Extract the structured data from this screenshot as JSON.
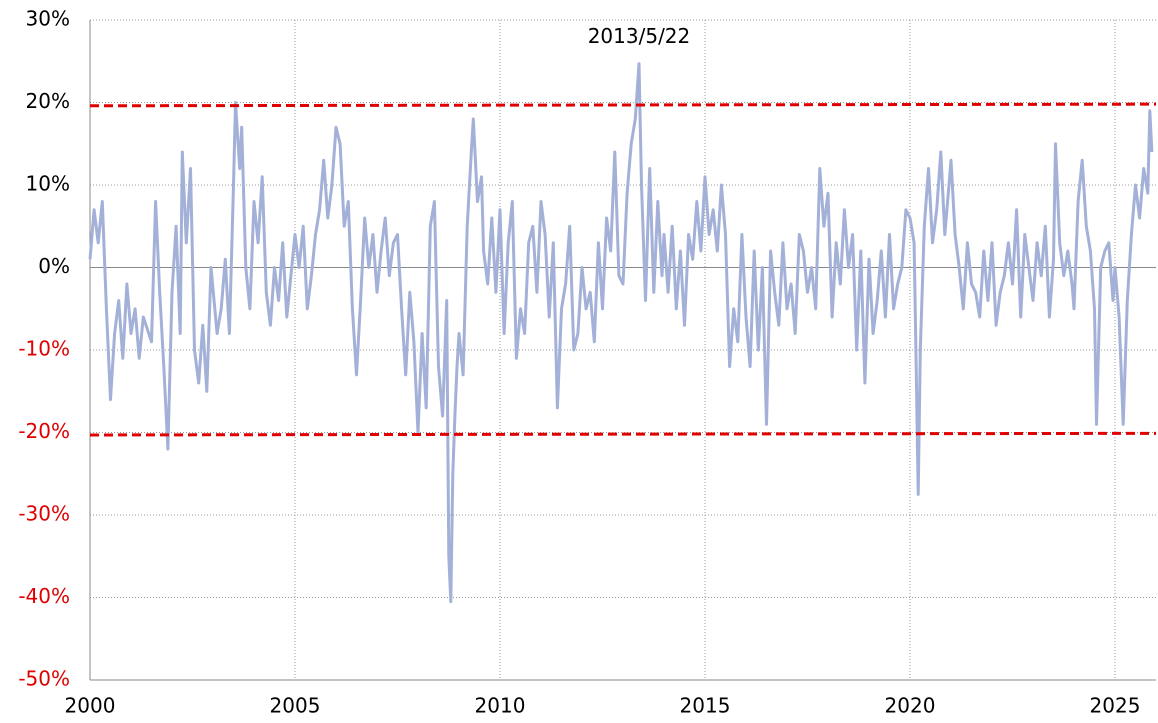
{
  "chart_data": {
    "type": "line",
    "annotation": "2013/5/22",
    "x": [
      2000.0,
      2000.1,
      2000.2,
      2000.3,
      2000.4,
      2000.5,
      2000.6,
      2000.7,
      2000.8,
      2000.9,
      2001.0,
      2001.1,
      2001.2,
      2001.3,
      2001.5,
      2001.6,
      2001.7,
      2001.8,
      2001.9,
      2002.0,
      2002.1,
      2002.2,
      2002.25,
      2002.35,
      2002.45,
      2002.55,
      2002.65,
      2002.75,
      2002.85,
      2002.95,
      2003.1,
      2003.2,
      2003.3,
      2003.4,
      2003.5,
      2003.55,
      2003.65,
      2003.7,
      2003.8,
      2003.9,
      2004.0,
      2004.1,
      2004.2,
      2004.3,
      2004.4,
      2004.5,
      2004.6,
      2004.7,
      2004.8,
      2004.9,
      2005.0,
      2005.1,
      2005.2,
      2005.3,
      2005.4,
      2005.5,
      2005.6,
      2005.7,
      2005.8,
      2005.9,
      2006.0,
      2006.1,
      2006.2,
      2006.3,
      2006.4,
      2006.5,
      2006.6,
      2006.7,
      2006.8,
      2006.9,
      2007.0,
      2007.1,
      2007.2,
      2007.3,
      2007.4,
      2007.5,
      2007.6,
      2007.7,
      2007.8,
      2007.9,
      2008.0,
      2008.1,
      2008.2,
      2008.3,
      2008.4,
      2008.5,
      2008.6,
      2008.7,
      2008.75,
      2008.8,
      2008.85,
      2008.9,
      2008.95,
      2009.0,
      2009.1,
      2009.2,
      2009.3,
      2009.35,
      2009.45,
      2009.55,
      2009.6,
      2009.7,
      2009.8,
      2009.9,
      2010.0,
      2010.1,
      2010.2,
      2010.3,
      2010.4,
      2010.5,
      2010.6,
      2010.7,
      2010.8,
      2010.9,
      2011.0,
      2011.1,
      2011.2,
      2011.3,
      2011.4,
      2011.5,
      2011.6,
      2011.7,
      2011.8,
      2011.9,
      2012.0,
      2012.1,
      2012.2,
      2012.3,
      2012.4,
      2012.5,
      2012.6,
      2012.7,
      2012.8,
      2012.9,
      2013.0,
      2013.1,
      2013.2,
      2013.3,
      2013.39,
      2013.45,
      2013.55,
      2013.65,
      2013.75,
      2013.85,
      2013.95,
      2014.0,
      2014.1,
      2014.2,
      2014.3,
      2014.4,
      2014.5,
      2014.6,
      2014.7,
      2014.8,
      2014.9,
      2015.0,
      2015.1,
      2015.2,
      2015.3,
      2015.4,
      2015.5,
      2015.6,
      2015.7,
      2015.8,
      2015.9,
      2016.0,
      2016.1,
      2016.2,
      2016.3,
      2016.4,
      2016.5,
      2016.6,
      2016.7,
      2016.8,
      2016.9,
      2017.0,
      2017.1,
      2017.2,
      2017.3,
      2017.4,
      2017.5,
      2017.6,
      2017.7,
      2017.8,
      2017.9,
      2018.0,
      2018.1,
      2018.2,
      2018.3,
      2018.4,
      2018.5,
      2018.6,
      2018.7,
      2018.8,
      2018.9,
      2019.0,
      2019.1,
      2019.2,
      2019.3,
      2019.4,
      2019.5,
      2019.6,
      2019.7,
      2019.8,
      2019.9,
      2020.0,
      2020.1,
      2020.15,
      2020.2,
      2020.25,
      2020.35,
      2020.45,
      2020.55,
      2020.65,
      2020.75,
      2020.85,
      2020.95,
      2021.0,
      2021.1,
      2021.2,
      2021.3,
      2021.4,
      2021.5,
      2021.6,
      2021.7,
      2021.8,
      2021.9,
      2022.0,
      2022.1,
      2022.2,
      2022.3,
      2022.4,
      2022.5,
      2022.6,
      2022.7,
      2022.8,
      2022.9,
      2023.0,
      2023.1,
      2023.2,
      2023.3,
      2023.4,
      2023.5,
      2023.55,
      2023.65,
      2023.75,
      2023.85,
      2023.95,
      2024.0,
      2024.1,
      2024.2,
      2024.3,
      2024.4,
      2024.5,
      2024.55,
      2024.65,
      2024.75,
      2024.85,
      2024.95,
      2025.0,
      2025.1,
      2025.2,
      2025.3,
      2025.4,
      2025.5,
      2025.6,
      2025.7,
      2025.8,
      2025.85,
      2025.9
    ],
    "series": [
      {
        "color": "#a3b0d8",
        "values": [
          1,
          7,
          3,
          8,
          -5,
          -16,
          -8,
          -4,
          -11,
          -2,
          -8,
          -5,
          -11,
          -6,
          -9,
          8,
          -3,
          -12,
          -22,
          -3,
          5,
          -8,
          14,
          3,
          12,
          -10,
          -14,
          -7,
          -15,
          0,
          -8,
          -5,
          1,
          -8,
          10,
          20,
          12,
          17,
          0,
          -5,
          8,
          3,
          11,
          -3,
          -7,
          0,
          -4,
          3,
          -6,
          -1,
          4,
          0,
          5,
          -5,
          -1,
          4,
          7,
          13,
          6,
          10,
          17,
          15,
          5,
          8,
          -5,
          -13,
          -4,
          6,
          0,
          4,
          -3,
          2,
          6,
          -1,
          3,
          4,
          -5,
          -13,
          -3,
          -9,
          -20,
          -8,
          -17,
          5,
          8,
          -12,
          -18,
          -4,
          -35,
          -40.5,
          -25,
          -18,
          -12,
          -8,
          -13,
          5,
          14,
          18,
          8,
          11,
          2,
          -2,
          6,
          -3,
          7,
          -8,
          3,
          8,
          -11,
          -5,
          -8,
          3,
          5,
          -3,
          8,
          4,
          -6,
          3,
          -17,
          -5,
          -2,
          5,
          -10,
          -8,
          0,
          -5,
          -3,
          -9,
          3,
          -5,
          6,
          2,
          14,
          -1,
          -2,
          9,
          15,
          18,
          24.7,
          10,
          -4,
          12,
          -3,
          8,
          -1,
          4,
          -3,
          5,
          -5,
          2,
          -7,
          4,
          1,
          8,
          2,
          11,
          4,
          7,
          2,
          10,
          4,
          -12,
          -5,
          -9,
          4,
          -6,
          -12,
          2,
          -10,
          0,
          -19,
          2,
          -3,
          -7,
          3,
          -5,
          -2,
          -8,
          4,
          2,
          -3,
          0,
          -5,
          12,
          5,
          9,
          -6,
          3,
          -2,
          7,
          0,
          4,
          -10,
          2,
          -14,
          1,
          -8,
          -4,
          2,
          -6,
          4,
          -5,
          -2,
          0,
          7,
          6,
          3,
          -12,
          -27.5,
          -10,
          5,
          12,
          3,
          7,
          14,
          4,
          10,
          13,
          4,
          0,
          -5,
          3,
          -2,
          -3,
          -6,
          2,
          -4,
          3,
          -7,
          -3,
          -1,
          3,
          -2,
          7,
          -6,
          4,
          0,
          -4,
          3,
          -1,
          5,
          -6,
          1,
          15,
          3,
          -1,
          2,
          -2,
          -5,
          8,
          13,
          5,
          2,
          -5,
          -19,
          0,
          2,
          3,
          -4,
          0,
          -6,
          -19,
          -4,
          4,
          10,
          6,
          12,
          9,
          19,
          14
        ]
      }
    ],
    "reference_lines": [
      {
        "y": [
          19.6,
          19.8
        ],
        "color": "#e00000"
      },
      {
        "y": [
          -20.3,
          -20.1
        ],
        "color": "#e00000"
      }
    ],
    "xlim": [
      2000,
      2026
    ],
    "ylim": [
      -50,
      30
    ],
    "xticks": [
      2000,
      2005,
      2010,
      2015,
      2020,
      2025
    ],
    "yticks": [
      {
        "value": 30,
        "label": "30%"
      },
      {
        "value": 20,
        "label": "20%"
      },
      {
        "value": 10,
        "label": "10%"
      },
      {
        "value": 0,
        "label": "0%"
      },
      {
        "value": -10,
        "label": "-10%"
      },
      {
        "value": -20,
        "label": "-20%"
      },
      {
        "value": -30,
        "label": "-30%"
      },
      {
        "value": -40,
        "label": "-40%"
      },
      {
        "value": -50,
        "label": "-50%"
      }
    ],
    "negative_tick_color": "#e00000",
    "grid": true
  }
}
